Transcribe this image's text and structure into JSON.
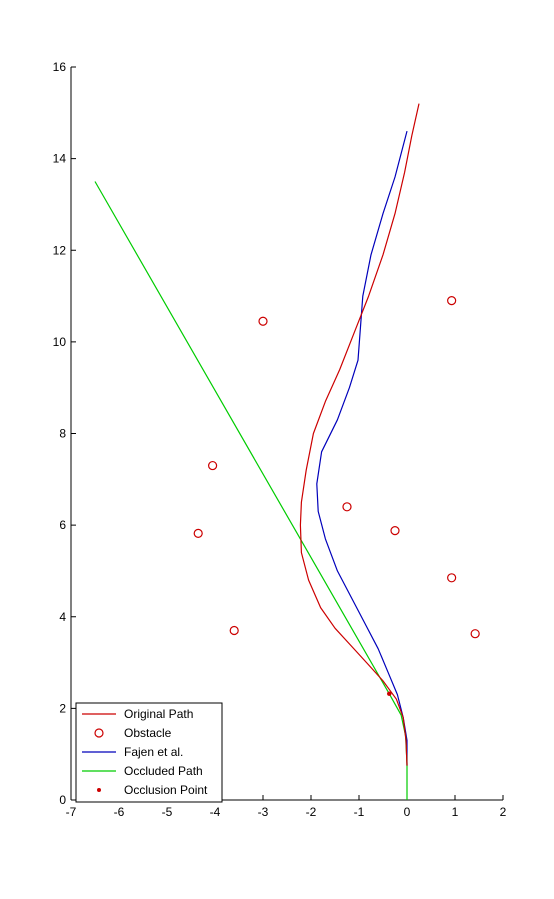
{
  "chart_data": {
    "type": "line",
    "title": "",
    "xlabel": "",
    "ylabel": "",
    "xlim": [
      -7,
      2
    ],
    "ylim": [
      0,
      16
    ],
    "xticks": [
      -7,
      -6,
      -5,
      -4,
      -3,
      -2,
      -1,
      0,
      1,
      2
    ],
    "yticks": [
      0,
      2,
      4,
      6,
      8,
      10,
      12,
      14,
      16
    ],
    "grid": false,
    "legend_position": "bottom-left",
    "series": [
      {
        "name": "Original Path",
        "kind": "line",
        "color": "#cc0000",
        "points": [
          [
            0.0,
            0.75
          ],
          [
            -0.02,
            1.3
          ],
          [
            -0.08,
            1.8
          ],
          [
            -0.22,
            2.2
          ],
          [
            -0.5,
            2.6
          ],
          [
            -0.8,
            2.95
          ],
          [
            -1.15,
            3.35
          ],
          [
            -1.5,
            3.75
          ],
          [
            -1.8,
            4.2
          ],
          [
            -2.05,
            4.8
          ],
          [
            -2.2,
            5.4
          ],
          [
            -2.22,
            6.0
          ],
          [
            -2.2,
            6.5
          ],
          [
            -2.1,
            7.2
          ],
          [
            -1.95,
            8.0
          ],
          [
            -1.7,
            8.7
          ],
          [
            -1.4,
            9.4
          ],
          [
            -1.1,
            10.2
          ],
          [
            -0.8,
            11.0
          ],
          [
            -0.5,
            11.9
          ],
          [
            -0.25,
            12.8
          ],
          [
            -0.05,
            13.7
          ],
          [
            0.1,
            14.5
          ],
          [
            0.25,
            15.2
          ]
        ]
      },
      {
        "name": "Obstacle",
        "kind": "marker",
        "color": "#cc0000",
        "points": [
          [
            -3.0,
            10.45
          ],
          [
            0.93,
            10.9
          ],
          [
            -4.05,
            7.3
          ],
          [
            -4.35,
            5.82
          ],
          [
            -1.25,
            6.4
          ],
          [
            -0.25,
            5.88
          ],
          [
            0.93,
            4.85
          ],
          [
            -3.6,
            3.7
          ],
          [
            1.42,
            3.63
          ]
        ]
      },
      {
        "name": "Fajen et al.",
        "kind": "line",
        "color": "#0000bb",
        "points": [
          [
            0.0,
            0.75
          ],
          [
            0.0,
            1.3
          ],
          [
            -0.08,
            1.8
          ],
          [
            -0.2,
            2.3
          ],
          [
            -0.4,
            2.8
          ],
          [
            -0.6,
            3.3
          ],
          [
            -0.85,
            3.8
          ],
          [
            -1.15,
            4.4
          ],
          [
            -1.45,
            5.0
          ],
          [
            -1.7,
            5.7
          ],
          [
            -1.85,
            6.3
          ],
          [
            -1.88,
            6.9
          ],
          [
            -1.78,
            7.6
          ],
          [
            -1.45,
            8.3
          ],
          [
            -1.2,
            9.0
          ],
          [
            -1.02,
            9.6
          ],
          [
            -0.97,
            10.3
          ],
          [
            -0.92,
            11.0
          ],
          [
            -0.75,
            11.9
          ],
          [
            -0.5,
            12.8
          ],
          [
            -0.25,
            13.6
          ],
          [
            0.0,
            14.6
          ]
        ]
      },
      {
        "name": "Occluded Path",
        "kind": "line",
        "color": "#00cc00",
        "points": [
          [
            0.0,
            0.0
          ],
          [
            0.0,
            0.8
          ],
          [
            -0.03,
            1.4
          ],
          [
            -0.12,
            1.85
          ],
          [
            -0.37,
            2.32
          ],
          [
            -2.25,
            5.75
          ],
          [
            -6.5,
            13.5
          ]
        ]
      },
      {
        "name": "Occlusion Point",
        "kind": "point",
        "color": "#cc0000",
        "points": [
          [
            -0.37,
            2.32
          ]
        ]
      }
    ]
  }
}
